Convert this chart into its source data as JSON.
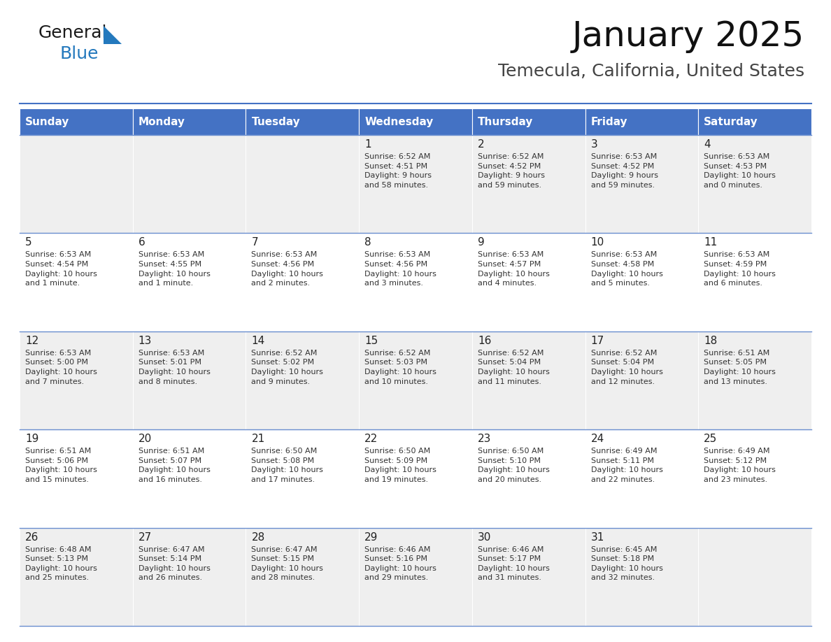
{
  "title": "January 2025",
  "subtitle": "Temecula, California, United States",
  "header_color": "#4472C4",
  "header_text_color": "#FFFFFF",
  "cell_bg_even": "#EFEFEF",
  "cell_bg_odd": "#FFFFFF",
  "days_of_week": [
    "Sunday",
    "Monday",
    "Tuesday",
    "Wednesday",
    "Thursday",
    "Friday",
    "Saturday"
  ],
  "weeks": [
    [
      {
        "day": "",
        "info": ""
      },
      {
        "day": "",
        "info": ""
      },
      {
        "day": "",
        "info": ""
      },
      {
        "day": "1",
        "info": "Sunrise: 6:52 AM\nSunset: 4:51 PM\nDaylight: 9 hours\nand 58 minutes."
      },
      {
        "day": "2",
        "info": "Sunrise: 6:52 AM\nSunset: 4:52 PM\nDaylight: 9 hours\nand 59 minutes."
      },
      {
        "day": "3",
        "info": "Sunrise: 6:53 AM\nSunset: 4:52 PM\nDaylight: 9 hours\nand 59 minutes."
      },
      {
        "day": "4",
        "info": "Sunrise: 6:53 AM\nSunset: 4:53 PM\nDaylight: 10 hours\nand 0 minutes."
      }
    ],
    [
      {
        "day": "5",
        "info": "Sunrise: 6:53 AM\nSunset: 4:54 PM\nDaylight: 10 hours\nand 1 minute."
      },
      {
        "day": "6",
        "info": "Sunrise: 6:53 AM\nSunset: 4:55 PM\nDaylight: 10 hours\nand 1 minute."
      },
      {
        "day": "7",
        "info": "Sunrise: 6:53 AM\nSunset: 4:56 PM\nDaylight: 10 hours\nand 2 minutes."
      },
      {
        "day": "8",
        "info": "Sunrise: 6:53 AM\nSunset: 4:56 PM\nDaylight: 10 hours\nand 3 minutes."
      },
      {
        "day": "9",
        "info": "Sunrise: 6:53 AM\nSunset: 4:57 PM\nDaylight: 10 hours\nand 4 minutes."
      },
      {
        "day": "10",
        "info": "Sunrise: 6:53 AM\nSunset: 4:58 PM\nDaylight: 10 hours\nand 5 minutes."
      },
      {
        "day": "11",
        "info": "Sunrise: 6:53 AM\nSunset: 4:59 PM\nDaylight: 10 hours\nand 6 minutes."
      }
    ],
    [
      {
        "day": "12",
        "info": "Sunrise: 6:53 AM\nSunset: 5:00 PM\nDaylight: 10 hours\nand 7 minutes."
      },
      {
        "day": "13",
        "info": "Sunrise: 6:53 AM\nSunset: 5:01 PM\nDaylight: 10 hours\nand 8 minutes."
      },
      {
        "day": "14",
        "info": "Sunrise: 6:52 AM\nSunset: 5:02 PM\nDaylight: 10 hours\nand 9 minutes."
      },
      {
        "day": "15",
        "info": "Sunrise: 6:52 AM\nSunset: 5:03 PM\nDaylight: 10 hours\nand 10 minutes."
      },
      {
        "day": "16",
        "info": "Sunrise: 6:52 AM\nSunset: 5:04 PM\nDaylight: 10 hours\nand 11 minutes."
      },
      {
        "day": "17",
        "info": "Sunrise: 6:52 AM\nSunset: 5:04 PM\nDaylight: 10 hours\nand 12 minutes."
      },
      {
        "day": "18",
        "info": "Sunrise: 6:51 AM\nSunset: 5:05 PM\nDaylight: 10 hours\nand 13 minutes."
      }
    ],
    [
      {
        "day": "19",
        "info": "Sunrise: 6:51 AM\nSunset: 5:06 PM\nDaylight: 10 hours\nand 15 minutes."
      },
      {
        "day": "20",
        "info": "Sunrise: 6:51 AM\nSunset: 5:07 PM\nDaylight: 10 hours\nand 16 minutes."
      },
      {
        "day": "21",
        "info": "Sunrise: 6:50 AM\nSunset: 5:08 PM\nDaylight: 10 hours\nand 17 minutes."
      },
      {
        "day": "22",
        "info": "Sunrise: 6:50 AM\nSunset: 5:09 PM\nDaylight: 10 hours\nand 19 minutes."
      },
      {
        "day": "23",
        "info": "Sunrise: 6:50 AM\nSunset: 5:10 PM\nDaylight: 10 hours\nand 20 minutes."
      },
      {
        "day": "24",
        "info": "Sunrise: 6:49 AM\nSunset: 5:11 PM\nDaylight: 10 hours\nand 22 minutes."
      },
      {
        "day": "25",
        "info": "Sunrise: 6:49 AM\nSunset: 5:12 PM\nDaylight: 10 hours\nand 23 minutes."
      }
    ],
    [
      {
        "day": "26",
        "info": "Sunrise: 6:48 AM\nSunset: 5:13 PM\nDaylight: 10 hours\nand 25 minutes."
      },
      {
        "day": "27",
        "info": "Sunrise: 6:47 AM\nSunset: 5:14 PM\nDaylight: 10 hours\nand 26 minutes."
      },
      {
        "day": "28",
        "info": "Sunrise: 6:47 AM\nSunset: 5:15 PM\nDaylight: 10 hours\nand 28 minutes."
      },
      {
        "day": "29",
        "info": "Sunrise: 6:46 AM\nSunset: 5:16 PM\nDaylight: 10 hours\nand 29 minutes."
      },
      {
        "day": "30",
        "info": "Sunrise: 6:46 AM\nSunset: 5:17 PM\nDaylight: 10 hours\nand 31 minutes."
      },
      {
        "day": "31",
        "info": "Sunrise: 6:45 AM\nSunset: 5:18 PM\nDaylight: 10 hours\nand 32 minutes."
      },
      {
        "day": "",
        "info": ""
      }
    ]
  ],
  "logo_general_color": "#1a1a1a",
  "logo_blue_color": "#2479BD",
  "logo_triangle_color": "#2479BD",
  "divider_color": "#4472C4",
  "cell_text_color": "#333333",
  "day_number_color": "#222222",
  "title_fontsize": 36,
  "subtitle_fontsize": 18,
  "header_fontsize": 11,
  "day_num_fontsize": 11,
  "cell_text_fontsize": 8,
  "logo_fontsize": 18
}
